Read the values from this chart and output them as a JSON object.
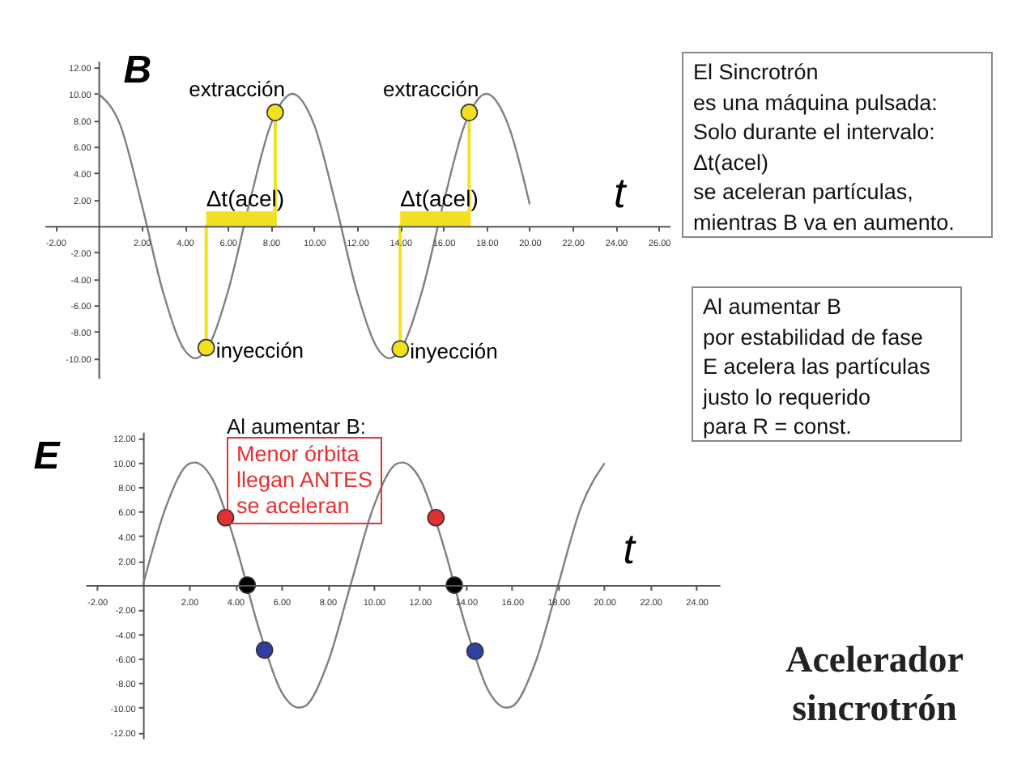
{
  "chart_data": [
    {
      "type": "line",
      "xlabel": "t",
      "ylabel": "B",
      "xlim": [
        -2.5,
        26.5
      ],
      "ylim": [
        -11.5,
        12.5
      ],
      "grid": false,
      "xticks": [
        {
          "value": -2,
          "label": "-2.00"
        },
        {
          "value": 2,
          "label": "2.00"
        },
        {
          "value": 4,
          "label": "4.00"
        },
        {
          "value": 6,
          "label": "6.00"
        },
        {
          "value": 8,
          "label": "8.00"
        },
        {
          "value": 10,
          "label": "10.00"
        },
        {
          "value": 12,
          "label": "12.00"
        },
        {
          "value": 14,
          "label": "14.00"
        },
        {
          "value": 16,
          "label": "16.00"
        },
        {
          "value": 18,
          "label": "18.00"
        },
        {
          "value": 20,
          "label": "20.00"
        },
        {
          "value": 22,
          "label": "22.00"
        },
        {
          "value": 24,
          "label": "24.00"
        },
        {
          "value": 26,
          "label": "26.00"
        }
      ],
      "yticks": [
        {
          "value": 12,
          "label": "12.00"
        },
        {
          "value": 10,
          "label": "10.00"
        },
        {
          "value": 8,
          "label": "8.00"
        },
        {
          "value": 6,
          "label": "6.00"
        },
        {
          "value": 4,
          "label": "4.00"
        },
        {
          "value": 2,
          "label": "2.00"
        },
        {
          "value": -2,
          "label": "-2.00"
        },
        {
          "value": -4,
          "label": "-4.00"
        },
        {
          "value": -6,
          "label": "-6.00"
        },
        {
          "value": -8,
          "label": "-8.00"
        },
        {
          "value": -10,
          "label": "-10.00"
        }
      ],
      "series": [
        {
          "type": "line",
          "color": "#808080",
          "x": [
            0,
            1,
            2,
            3,
            4,
            4.5,
            5,
            6,
            7,
            8,
            9,
            10,
            11,
            12,
            13,
            13.5,
            14,
            15,
            16,
            17,
            18,
            19,
            20
          ],
          "values": [
            10,
            7.7,
            1.7,
            -5,
            -9.4,
            -10,
            -9.4,
            -5,
            1.7,
            7.7,
            10,
            7.7,
            1.7,
            -5,
            -9.4,
            -10,
            -9.4,
            -5,
            1.7,
            7.7,
            10,
            7.7,
            1.7
          ]
        },
        {
          "type": "line",
          "color": "#f0e020",
          "x": [
            5,
            5
          ],
          "values": [
            -9.2,
            0
          ]
        },
        {
          "type": "line",
          "color": "#f0e020",
          "x": [
            8.2,
            8.2
          ],
          "values": [
            0,
            8.6
          ]
        },
        {
          "type": "line",
          "color": "#f0e020",
          "x": [
            14,
            14
          ],
          "values": [
            -9.3,
            0
          ]
        },
        {
          "type": "line",
          "color": "#f0e020",
          "x": [
            17.2,
            17.2
          ],
          "values": [
            0,
            8.6
          ]
        },
        {
          "type": "scatter",
          "marker": "circle",
          "color": "#f0e020",
          "x": [
            5,
            8.2,
            14,
            17.2
          ],
          "values": [
            -9.2,
            8.6,
            -9.3,
            8.6
          ]
        }
      ],
      "bands": [
        {
          "axis": "x",
          "from": 5,
          "to": 8.2,
          "label": "Δt(acel)",
          "color": "#f0e020"
        },
        {
          "axis": "x",
          "from": 14,
          "to": 17.2,
          "label": "Δt(acel)",
          "color": "#f0e020"
        }
      ],
      "annotations": [
        {
          "text": "extracción",
          "x": 8.2,
          "y": 8.6
        },
        {
          "text": "extracción",
          "x": 17.2,
          "y": 8.6
        },
        {
          "text": "inyección",
          "x": 5,
          "y": -9.2
        },
        {
          "text": "inyección",
          "x": 14,
          "y": -9.3
        }
      ]
    },
    {
      "type": "line",
      "xlabel": "t",
      "ylabel": "E",
      "xlim": [
        -2.5,
        25
      ],
      "ylim": [
        -12.5,
        12.5
      ],
      "grid": false,
      "xticks": [
        {
          "value": -2,
          "label": "-2.00"
        },
        {
          "value": 2,
          "label": "2.00"
        },
        {
          "value": 4,
          "label": "4.00"
        },
        {
          "value": 6,
          "label": "6.00"
        },
        {
          "value": 8,
          "label": "8.00"
        },
        {
          "value": 10,
          "label": "10.00"
        },
        {
          "value": 12,
          "label": "12.00"
        },
        {
          "value": 14,
          "label": "14.00"
        },
        {
          "value": 16,
          "label": "16.00"
        },
        {
          "value": 18,
          "label": "18.00"
        },
        {
          "value": 20,
          "label": "20.00"
        },
        {
          "value": 22,
          "label": "22.00"
        },
        {
          "value": 24,
          "label": "24.00"
        }
      ],
      "yticks": [
        {
          "value": 12,
          "label": "12.00"
        },
        {
          "value": 10,
          "label": "10.00"
        },
        {
          "value": 8,
          "label": "8.00"
        },
        {
          "value": 6,
          "label": "6.00"
        },
        {
          "value": 4,
          "label": "4.00"
        },
        {
          "value": 2,
          "label": "2.00"
        },
        {
          "value": -2,
          "label": "-2.00"
        },
        {
          "value": -4,
          "label": "-4.00"
        },
        {
          "value": -6,
          "label": "-6.00"
        },
        {
          "value": -8,
          "label": "-8.00"
        },
        {
          "value": -10,
          "label": "-10.00"
        },
        {
          "value": -12,
          "label": "-12.00"
        }
      ],
      "series": [
        {
          "type": "line",
          "color": "#808080",
          "x": [
            0,
            1,
            2,
            2.25,
            3,
            4,
            5,
            6,
            6.75,
            7,
            8,
            9,
            10,
            11,
            11.25,
            12,
            13,
            14,
            15,
            15.75,
            16,
            17,
            18,
            19,
            20
          ],
          "values": [
            0,
            6.4,
            9.9,
            10,
            8.7,
            3.4,
            -3.4,
            -8.7,
            -10,
            -9.9,
            -6.4,
            0,
            6.4,
            9.9,
            10,
            8.7,
            3.4,
            -3.4,
            -8.7,
            -10,
            -9.9,
            -6.4,
            0,
            6.4,
            9.9
          ]
        },
        {
          "type": "scatter",
          "marker": "circle",
          "color": "#e03030",
          "x": [
            3.58,
            12.7
          ],
          "values": [
            5.5,
            5.5
          ]
        },
        {
          "type": "scatter",
          "marker": "circle",
          "color": "#000000",
          "x": [
            4.52,
            13.5
          ],
          "values": [
            0,
            0
          ]
        },
        {
          "type": "scatter",
          "marker": "circle",
          "color": "#3040a0",
          "x": [
            5.27,
            14.4
          ],
          "values": [
            -5.3,
            -5.4
          ]
        }
      ],
      "annotations": [
        "Al aumentar  B:",
        "Menor  órbita\nllegan ANTES\nse aceleran"
      ]
    },
    {
      "type": "other",
      "annotations": [
        "El Sincrotrón",
        "es una máquina pulsada:",
        "Solo durante el intervalo:",
        "Δt(acel)",
        "se aceleran partículas,",
        "mientras B va en aumento."
      ]
    },
    {
      "type": "other",
      "annotations": [
        "Al aumentar B",
        "por estabilidad de fase",
        "E acelera las partículas",
        "justo lo requerido",
        "para R = const."
      ]
    },
    {
      "type": "other",
      "title": "Acelerador sincrotrón"
    }
  ]
}
